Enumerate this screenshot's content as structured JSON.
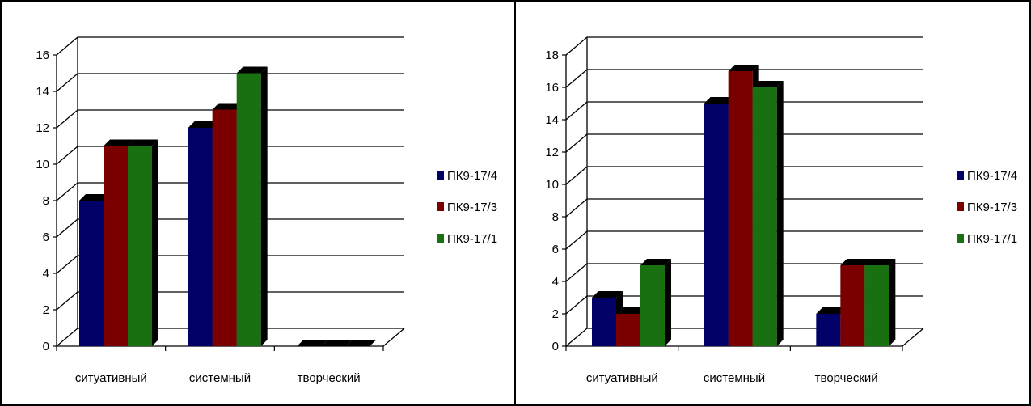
{
  "figure": {
    "border_color": "#000000"
  },
  "chart_data": [
    {
      "type": "bar",
      "title": "",
      "xlabel": "",
      "ylabel": "",
      "categories": [
        "ситуативный",
        "системный",
        "творческий"
      ],
      "y_ticks": [
        "0",
        "2",
        "4",
        "6",
        "8",
        "10",
        "12",
        "14",
        "16"
      ],
      "ylim": [
        0,
        16
      ],
      "grid": true,
      "legend_position": "right",
      "series": [
        {
          "name": "ПК9-17/4",
          "color": "#000066",
          "values": [
            8,
            12,
            0
          ]
        },
        {
          "name": "ПК9-17/3",
          "color": "#7a0000",
          "values": [
            11,
            13,
            0
          ]
        },
        {
          "name": "ПК9-17/1",
          "color": "#187010",
          "values": [
            11,
            15,
            0
          ]
        }
      ]
    },
    {
      "type": "bar",
      "title": "",
      "xlabel": "",
      "ylabel": "",
      "categories": [
        "ситуативный",
        "системный",
        "творческий"
      ],
      "y_ticks": [
        "0",
        "2",
        "4",
        "6",
        "8",
        "10",
        "12",
        "14",
        "16",
        "18"
      ],
      "ylim": [
        0,
        18
      ],
      "grid": true,
      "legend_position": "right",
      "series": [
        {
          "name": "ПК9-17/4",
          "color": "#000066",
          "values": [
            3,
            15,
            2
          ]
        },
        {
          "name": "ПК9-17/3",
          "color": "#7a0000",
          "values": [
            2,
            17,
            5
          ]
        },
        {
          "name": "ПК9-17/1",
          "color": "#187010",
          "values": [
            5,
            16,
            5
          ]
        }
      ]
    }
  ]
}
